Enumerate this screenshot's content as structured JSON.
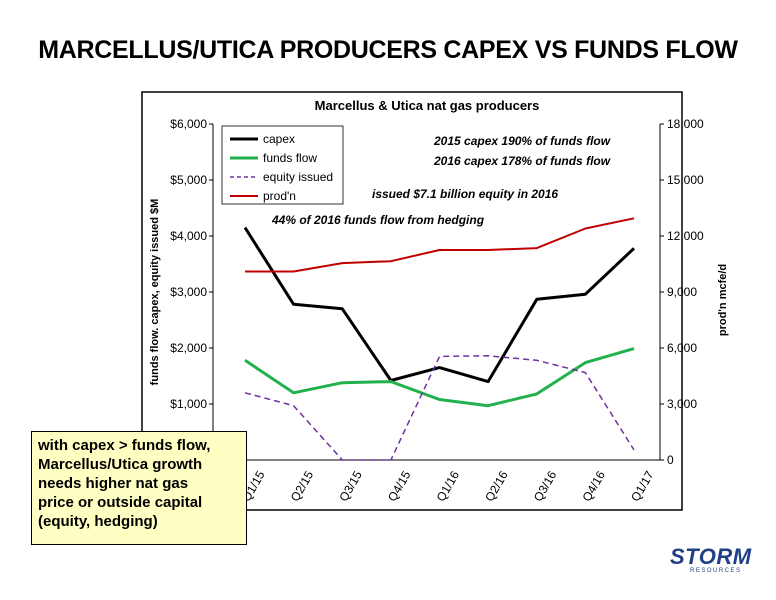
{
  "slide_title": "MARCELLUS/UTICA PRODUCERS CAPEX VS FUNDS FLOW",
  "chart_data": {
    "type": "line",
    "title": "Marcellus & Utica nat gas producers",
    "xlabel": "",
    "ylabel": "funds flow. capex, equity issued $M",
    "y2label": "prod'n mcfe/d",
    "categories": [
      "Q1/15",
      "Q2/15",
      "Q3/15",
      "Q4/15",
      "Q1/16",
      "Q2/16",
      "Q3/16",
      "Q4/16",
      "Q1/17"
    ],
    "ylim": [
      0,
      6000
    ],
    "y2lim": [
      0,
      18000
    ],
    "yticks": [
      "$1,000",
      "$2,000",
      "$3,000",
      "$4,000",
      "$5,000",
      "$6,000"
    ],
    "y2ticks": [
      "0",
      "3,000",
      "6,000",
      "9,000",
      "12,000",
      "15,000",
      "18,000"
    ],
    "series": [
      {
        "name": "capex",
        "axis": "left",
        "color": "#000000",
        "style": "solid",
        "values": [
          4150,
          2780,
          2700,
          1420,
          1650,
          1400,
          2870,
          2960,
          3780
        ]
      },
      {
        "name": "funds flow",
        "axis": "left",
        "color": "#22b14c",
        "style": "solid",
        "values": [
          1780,
          1200,
          1380,
          1400,
          1080,
          970,
          1180,
          1740,
          1990
        ]
      },
      {
        "name": "equity issued",
        "axis": "left",
        "color": "#7030a0",
        "style": "dashed",
        "values": [
          1200,
          970,
          0,
          0,
          1850,
          1860,
          1780,
          1560,
          180
        ]
      },
      {
        "name": "prod'n",
        "axis": "right",
        "color": "#c00000",
        "style": "solid",
        "values": [
          10100,
          10100,
          10550,
          10650,
          11250,
          11250,
          11350,
          12400,
          12950
        ]
      }
    ],
    "annotations": [
      "2015 capex 190% of funds flow",
      "2016 capex 178% of funds flow",
      "issued $7.1 billion equity in 2016",
      "44% of 2016 funds flow from hedging"
    ],
    "legend_position": "top-left",
    "grid": false
  },
  "callout": {
    "lines": [
      "with capex > funds flow,",
      "Marcellus/Utica growth",
      "needs higher nat gas",
      "price or outside capital",
      "(equity, hedging)"
    ]
  },
  "logo": {
    "text": "STORM",
    "sub": "RESOURCES",
    "color": "#1f3f86"
  }
}
